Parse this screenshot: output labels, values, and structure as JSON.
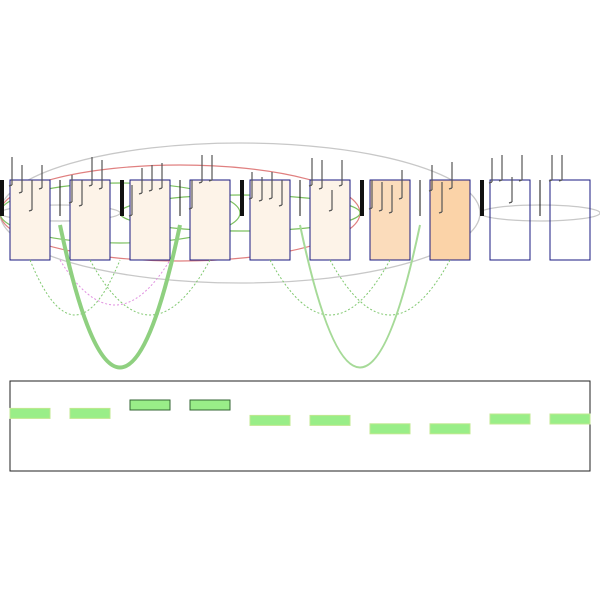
{
  "colors": {
    "background": "#ffffff",
    "box_stroke": "#1a1a80",
    "fill_light": "#fdf3e8",
    "fill_medium": "#fbdcbb",
    "fill_strong": "#fbd3a8",
    "tick": "#555555",
    "bar_dark": "#111111",
    "ellipse_gray": "#c8c8c8",
    "ellipse_red": "#e08080",
    "ellipse_green": "#7cc060",
    "arc_green_dot": "#80c870",
    "arc_pink_dot": "#e090e0",
    "arc_green_solid": "#8fd080",
    "seg_fill": "#99ee88",
    "seg_stroke": "#c0e890",
    "seg_stroke_dark": "#336633",
    "track_stroke": "#222222"
  },
  "boxes": [
    {
      "id": 1,
      "fill": "fill_light"
    },
    {
      "id": 2,
      "fill": "fill_light"
    },
    {
      "id": 3,
      "fill": "fill_light"
    },
    {
      "id": 4,
      "fill": "fill_light"
    },
    {
      "id": 5,
      "fill": "fill_light"
    },
    {
      "id": 6,
      "fill": "fill_light"
    },
    {
      "id": 7,
      "fill": "fill_medium"
    },
    {
      "id": 8,
      "fill": "fill_strong"
    },
    {
      "id": 9,
      "fill": "none"
    },
    {
      "id": 10,
      "fill": "none"
    }
  ],
  "track_segments": [
    {
      "level": 0.45,
      "dark": false
    },
    {
      "level": 0.45,
      "dark": false
    },
    {
      "level": 0.75,
      "dark": true
    },
    {
      "level": 0.75,
      "dark": true
    },
    {
      "level": 0.2,
      "dark": false
    },
    {
      "level": 0.2,
      "dark": false
    },
    {
      "level": -0.1,
      "dark": false
    },
    {
      "level": -0.1,
      "dark": false
    },
    {
      "level": 0.25,
      "dark": false
    },
    {
      "level": 0.25,
      "dark": false
    }
  ]
}
